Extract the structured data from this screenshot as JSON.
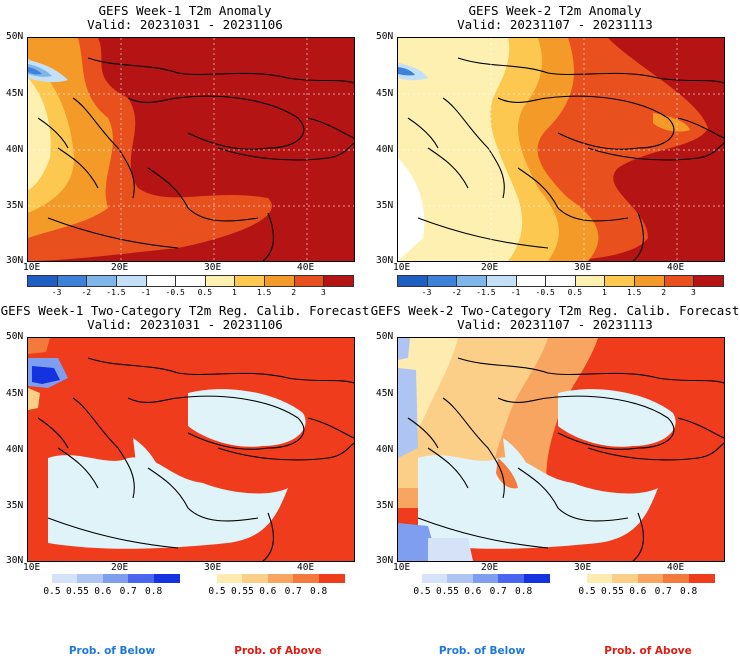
{
  "panels": [
    {
      "title": "GEFS Week-1 T2m Anomaly",
      "valid": "Valid: 20231031 - 20231106"
    },
    {
      "title": "GEFS Week-2 T2m Anomaly",
      "valid": "Valid: 20231107 - 20231113"
    },
    {
      "title": "GEFS Week-1 Two-Category T2m Reg. Calib. Forecast",
      "valid": "Valid: 20231031 - 20231106"
    },
    {
      "title": "GEFS Week-2 Two-Category T2m Reg. Calib. Forecast",
      "valid": "Valid: 20231107 - 20231113"
    }
  ],
  "axes": {
    "lat_labels": [
      "50N",
      "45N",
      "40N",
      "35N",
      "30N"
    ],
    "lon_labels": [
      "10E",
      "20E",
      "30E",
      "40E"
    ]
  },
  "anomaly_colorbar": {
    "ticks": [
      "-3",
      "-2",
      "-1.5",
      "-1",
      "-0.5",
      "0.5",
      "1",
      "1.5",
      "2",
      "3"
    ],
    "colors": [
      "#1f5fc4",
      "#3d82d8",
      "#7fb6ea",
      "#c4e0f6",
      "#ffffff",
      "#ffffff",
      "#fdf0b0",
      "#fcc850",
      "#f39a28",
      "#e8501e",
      "#b41414"
    ]
  },
  "prob_below_colorbar": {
    "ticks": [
      "0.5",
      "0.55",
      "0.6",
      "0.7",
      "0.8"
    ],
    "colors": [
      "#d6e2f8",
      "#aec4f2",
      "#7f9ef0",
      "#4a66ee",
      "#1432e0"
    ],
    "label": "Prob. of Below",
    "label_color": "#1e78dc"
  },
  "prob_above_colorbar": {
    "ticks": [
      "0.5",
      "0.55",
      "0.6",
      "0.7",
      "0.8"
    ],
    "colors": [
      "#fdebb0",
      "#fbcf88",
      "#f7a560",
      "#f27a3c",
      "#ee3c1c"
    ],
    "label": "Prob. of Above",
    "label_color": "#dc1e14"
  }
}
